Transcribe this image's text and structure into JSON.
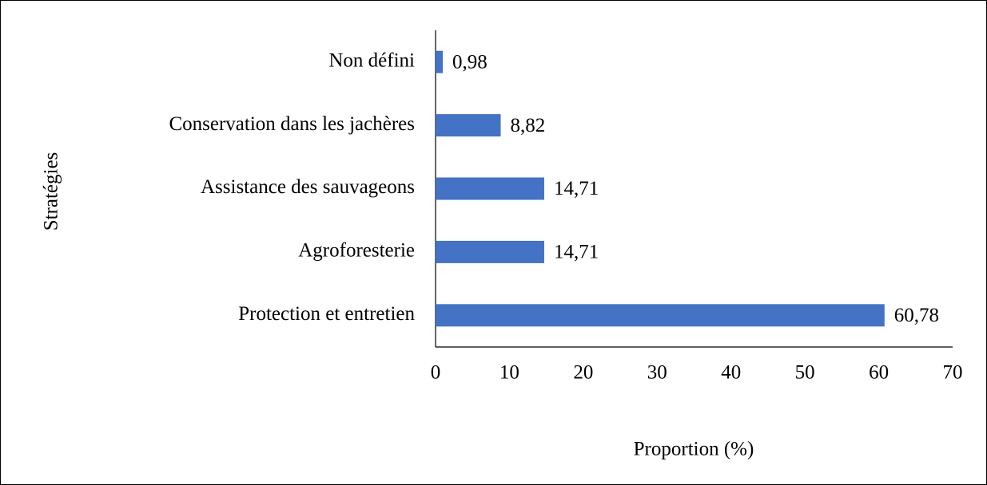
{
  "chart_data": {
    "type": "bar",
    "orientation": "horizontal",
    "x_label": "Proportion (%)",
    "y_label": "Stratégies",
    "categories": [
      "Non défini",
      "Conservation dans les jachères",
      "Assistance des sauvageons",
      "Agroforesterie",
      "Protection et entretien"
    ],
    "values": [
      0.98,
      8.82,
      14.71,
      14.71,
      60.78
    ],
    "value_labels": [
      "0,98",
      "8,82",
      "14,71",
      "14,71",
      "60,78"
    ],
    "color": "#4472c4",
    "xlim": [
      0,
      70
    ],
    "xticks": [
      0,
      10,
      20,
      30,
      40,
      50,
      60,
      70
    ],
    "grid": false
  }
}
